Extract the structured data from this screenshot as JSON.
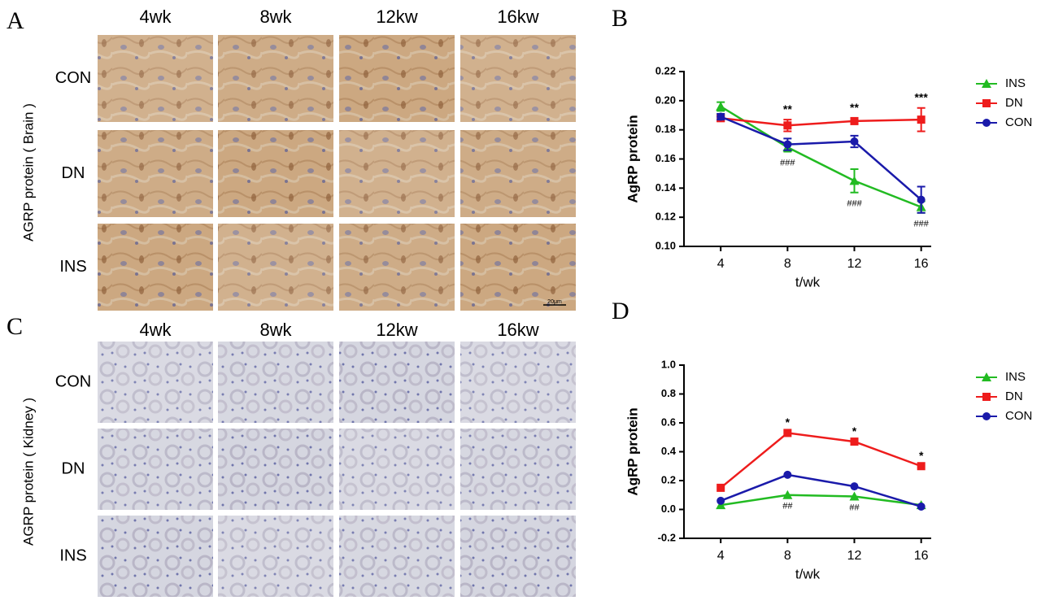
{
  "panels": [
    {
      "label": "A",
      "y_label": "AGRP protein ( Brain )",
      "columns": [
        "4wk",
        "8wk",
        "12kw",
        "16kw"
      ],
      "rows": [
        "CON",
        "DN",
        "INS"
      ],
      "scale_bar": "20μm"
    },
    {
      "label": "C",
      "y_label": "AGRP protein ( Kidney )",
      "columns": [
        "4wk",
        "8wk",
        "12kw",
        "16kw"
      ],
      "rows": [
        "CON",
        "DN",
        "INS"
      ]
    }
  ],
  "chart_data": [
    {
      "panel_label": "B",
      "type": "line",
      "x_label": "t/wk",
      "y_label": "AgRP protein",
      "x": [
        4,
        8,
        12,
        16
      ],
      "xlim": [
        1.8,
        16.6
      ],
      "xticks": [
        4,
        8,
        12,
        16
      ],
      "ylim": [
        0.1,
        0.22
      ],
      "yticks": [
        {
          "value": 0.1,
          "label": "0.10"
        },
        0.12,
        0.14,
        0.16,
        0.18,
        {
          "value": 0.2,
          "label": "0.20"
        },
        0.22
      ],
      "legend": "top-right",
      "series": [
        {
          "name": "INS",
          "color": "#22bb22",
          "marker": "triangle",
          "values": [
            0.196,
            0.168,
            0.145,
            0.127
          ],
          "errors": [
            0.003,
            0.003,
            0.008,
            0.004
          ]
        },
        {
          "name": "DN",
          "color": "#ee1c1c",
          "marker": "square",
          "values": [
            0.188,
            0.183,
            0.186,
            0.187
          ],
          "errors": [
            0.002,
            0.004,
            0.002,
            0.008
          ]
        },
        {
          "name": "CON",
          "color": "#1a1aaa",
          "marker": "circle",
          "values": [
            0.189,
            0.17,
            0.172,
            0.132
          ],
          "errors": [
            0.002,
            0.004,
            0.004,
            0.009
          ]
        }
      ],
      "annotations": [
        {
          "text": "**",
          "x": 8,
          "side": "above"
        },
        {
          "text": "**",
          "x": 12,
          "side": "above"
        },
        {
          "text": "***",
          "x": 16,
          "side": "above"
        },
        {
          "text": "###",
          "x": 8,
          "side": "below"
        },
        {
          "text": "###",
          "x": 12,
          "side": "below"
        },
        {
          "text": "###",
          "x": 16,
          "side": "below"
        }
      ]
    },
    {
      "panel_label": "D",
      "type": "line",
      "x_label": "t/wk",
      "y_label": "AgRP protein",
      "x": [
        4,
        8,
        12,
        16
      ],
      "xlim": [
        1.8,
        16.6
      ],
      "xticks": [
        4,
        8,
        12,
        16
      ],
      "ylim": [
        -0.2,
        1.0
      ],
      "yticks": [
        -0.2,
        {
          "value": 0,
          "label": "0.0"
        },
        0.2,
        0.4,
        0.6,
        0.8,
        {
          "value": 1,
          "label": "1.0"
        }
      ],
      "legend": "top-right",
      "series": [
        {
          "name": "INS",
          "color": "#22bb22",
          "marker": "triangle",
          "values": [
            0.03,
            0.1,
            0.09,
            0.03
          ]
        },
        {
          "name": "DN",
          "color": "#ee1c1c",
          "marker": "square",
          "values": [
            0.15,
            0.53,
            0.47,
            0.3
          ]
        },
        {
          "name": "CON",
          "color": "#1a1aaa",
          "marker": "circle",
          "values": [
            0.06,
            0.24,
            0.16,
            0.02
          ]
        }
      ],
      "annotations": [
        {
          "text": "*",
          "x": 8,
          "side": "above"
        },
        {
          "text": "*",
          "x": 12,
          "side": "above"
        },
        {
          "text": "*",
          "x": 16,
          "side": "above"
        },
        {
          "text": "##",
          "x": 8,
          "side": "below"
        },
        {
          "text": "##",
          "x": 12,
          "side": "below"
        }
      ]
    }
  ]
}
